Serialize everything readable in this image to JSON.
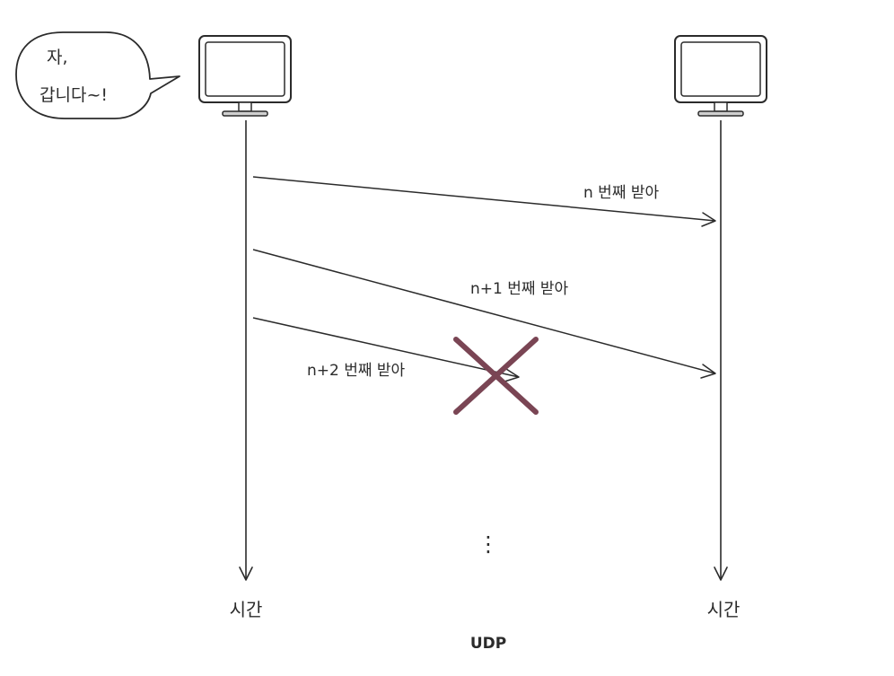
{
  "speech_bubble": {
    "line1": "자,",
    "line2": "갑니다~!"
  },
  "sender": {
    "icon": "monitor-icon",
    "timeline_label": "시간"
  },
  "receiver": {
    "icon": "monitor-icon",
    "timeline_label": "시간"
  },
  "messages": [
    {
      "label": "n 번째 받아",
      "delivered": true
    },
    {
      "label": "n+1 번째 받아",
      "delivered": true
    },
    {
      "label": "n+2 번째 받아",
      "delivered": false
    }
  ],
  "lost_marker": {
    "icon": "x-cross-icon",
    "color": "#7a4554"
  },
  "ellipsis": "⋮",
  "caption": "UDP",
  "colors": {
    "line": "#2b2b2b",
    "background": "#ffffff"
  }
}
